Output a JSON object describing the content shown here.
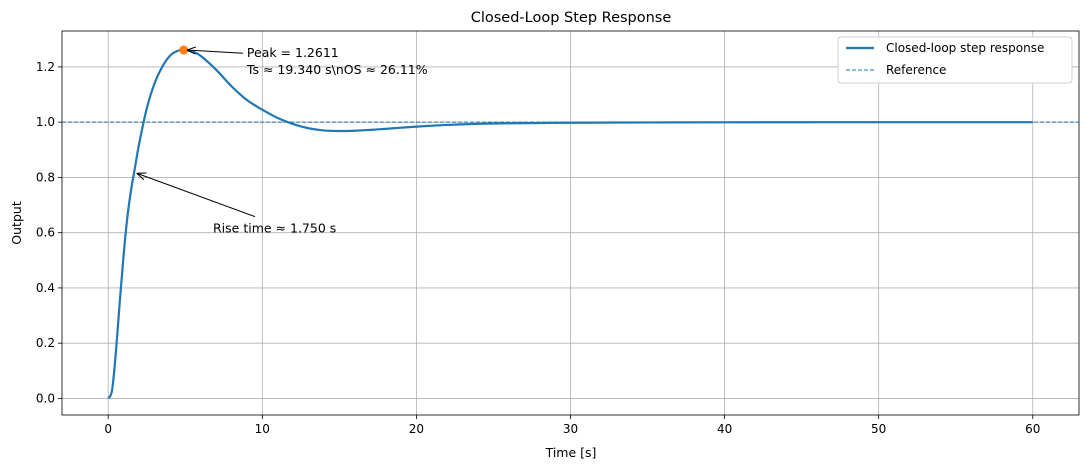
{
  "chart_data": {
    "type": "line",
    "title": "Closed-Loop Step Response",
    "xlabel": "Time [s]",
    "ylabel": "Output",
    "xlim": [
      -3,
      63
    ],
    "ylim": [
      -0.06,
      1.33
    ],
    "xticks": [
      0,
      10,
      20,
      30,
      40,
      50,
      60
    ],
    "xtick_labels": [
      "0",
      "10",
      "20",
      "30",
      "40",
      "50",
      "60"
    ],
    "yticks": [
      0.0,
      0.2,
      0.4,
      0.6,
      0.8,
      1.0,
      1.2
    ],
    "ytick_labels": [
      "0.0",
      "0.2",
      "0.4",
      "0.6",
      "0.8",
      "1.0",
      "1.2"
    ],
    "grid": true,
    "legend_position": "top-right",
    "series": [
      {
        "name": "Closed-loop step response",
        "color": "#1f77b4",
        "style": "solid",
        "x": [
          0,
          0.25,
          0.5,
          0.75,
          1,
          1.25,
          1.5,
          1.75,
          2,
          2.5,
          3,
          3.5,
          4,
          4.5,
          4.9,
          5.5,
          6,
          7,
          8,
          9,
          10,
          11,
          12,
          13,
          14,
          15,
          16,
          17,
          18,
          19,
          20,
          22,
          24,
          26,
          28,
          30,
          35,
          40,
          45,
          50,
          55,
          60
        ],
        "y": [
          0,
          0.03,
          0.17,
          0.35,
          0.52,
          0.66,
          0.76,
          0.84,
          0.92,
          1.05,
          1.14,
          1.2,
          1.24,
          1.258,
          1.2611,
          1.255,
          1.24,
          1.19,
          1.13,
          1.08,
          1.045,
          1.015,
          0.993,
          0.978,
          0.97,
          0.968,
          0.969,
          0.972,
          0.976,
          0.98,
          0.984,
          0.99,
          0.994,
          0.996,
          0.997,
          0.998,
          0.999,
          0.9995,
          0.9998,
          1.0,
          1.0,
          1.0
        ]
      },
      {
        "name": "Reference",
        "color": "#1f77b4",
        "style": "dashed",
        "x": [
          -3,
          63
        ],
        "y": [
          1.0,
          1.0
        ]
      }
    ],
    "peak_point": {
      "x": 4.9,
      "y": 1.2611,
      "color": "#ff7f0e"
    },
    "annotations": [
      {
        "text_lines": [
          "Peak = 1.2611",
          "Ts ≈ 19.340 s\\nOS ≈ 26.11%"
        ],
        "text_x": 9.0,
        "text_y": 1.235,
        "arrow_to_x": 5.1,
        "arrow_to_y": 1.2611
      },
      {
        "text_lines": [
          "Rise time ≈ 1.750 s"
        ],
        "text_x": 6.8,
        "text_y": 0.6,
        "arrow_to_x": 1.85,
        "arrow_to_y": 0.815
      }
    ]
  }
}
